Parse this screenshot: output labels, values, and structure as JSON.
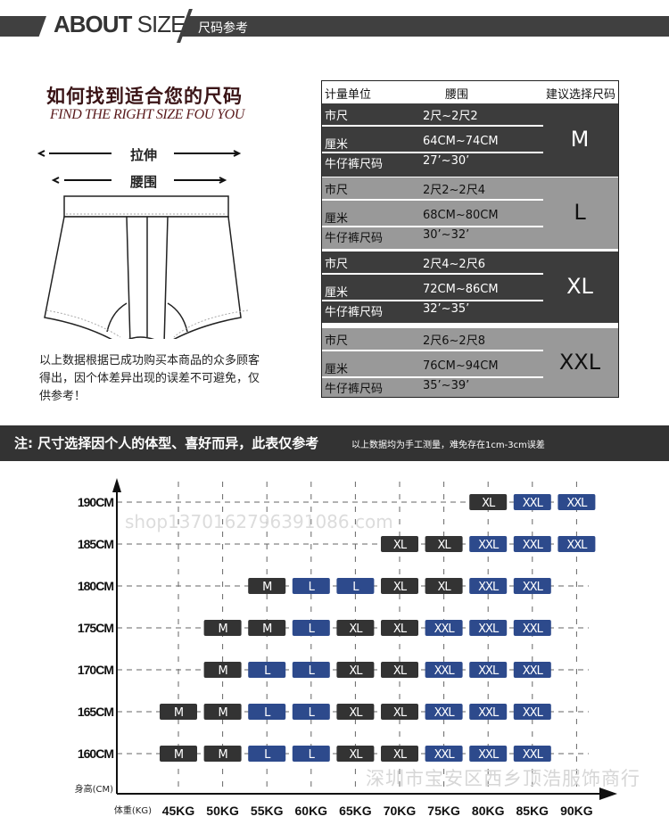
{
  "header": {
    "title_bold": "ABOUT",
    "title_light": "SIZE",
    "subtitle": "尺码参考"
  },
  "guide": {
    "title_cn": "如何找到适合您的尺码",
    "title_en": "FIND THE RIGHT SIZE FOU YOU",
    "stretch_label": "拉伸",
    "waist_label": "腰围",
    "description": "以上数据根据已成功购买本商品的众多顾客得出，因个体差异出现的误差不可避免，仅供参考！"
  },
  "size_table": {
    "headers": [
      "计量单位",
      "腰围",
      "建议选择尺码"
    ],
    "groups": [
      {
        "size": "M",
        "style": "dark",
        "rows": [
          {
            "unit": "市尺",
            "value": "2尺~2尺2"
          },
          {
            "unit": "厘米",
            "value": "64CM~74CM"
          },
          {
            "unit": "牛仔裤尺码",
            "value": "27’~30’"
          }
        ]
      },
      {
        "size": "L",
        "style": "light",
        "rows": [
          {
            "unit": "市尺",
            "value": "2尺2~2尺4"
          },
          {
            "unit": "厘米",
            "value": "68CM~80CM"
          },
          {
            "unit": "牛仔裤尺码",
            "value": "30’~32’"
          }
        ]
      },
      {
        "size": "XL",
        "style": "dark",
        "rows": [
          {
            "unit": "市尺",
            "value": "2尺4~2尺6"
          },
          {
            "unit": "厘米",
            "value": "72CM~86CM"
          },
          {
            "unit": "牛仔裤尺码",
            "value": "32’~35’"
          }
        ]
      },
      {
        "size": "XXL",
        "style": "light",
        "rows": [
          {
            "unit": "市尺",
            "value": "2尺6~2尺8"
          },
          {
            "unit": "厘米",
            "value": "76CM~94CM"
          },
          {
            "unit": "牛仔裤尺码",
            "value": "35’~39’"
          }
        ]
      }
    ]
  },
  "note": {
    "main": "注: 尺寸选择因个人的体型、喜好而异，此表仅参考",
    "sub": "以上数据均为手工测量，难免存在1cm-3cm误差"
  },
  "size_grid": {
    "type": "table",
    "ylabel": "身高(CM)",
    "xlabel": "体重(KG)",
    "heights": [
      "190CM",
      "185CM",
      "180CM",
      "175CM",
      "170CM",
      "165CM",
      "160CM"
    ],
    "weights": [
      "45KG",
      "50KG",
      "55KG",
      "60KG",
      "65KG",
      "70KG",
      "75KG",
      "80KG",
      "85KG",
      "90KG"
    ],
    "cells": [
      [
        null,
        null,
        null,
        null,
        null,
        null,
        null,
        "XL",
        "XXL",
        "XXL"
      ],
      [
        null,
        null,
        null,
        null,
        null,
        "XL",
        "XL",
        "XXL",
        "XXL",
        "XXL"
      ],
      [
        null,
        null,
        "M",
        "L",
        "L",
        "XL",
        "XL",
        "XXL",
        "XXL",
        null
      ],
      [
        null,
        "M",
        "M",
        "L",
        "XL",
        "XL",
        "XXL",
        "XXL",
        "XXL",
        null
      ],
      [
        null,
        "M",
        "L",
        "L",
        "XL",
        "XL",
        "XXL",
        "XXL",
        "XXL",
        null
      ],
      [
        "M",
        "M",
        "L",
        "L",
        "XL",
        "XL",
        "XXL",
        "XXL",
        "XXL",
        null
      ],
      [
        "M",
        "M",
        "L",
        "L",
        "XL",
        "XL",
        "XXL",
        "XXL",
        "XXL",
        null
      ]
    ],
    "colors": {
      "M": "#333333",
      "XL": "#333333",
      "L": "#2d4a8c",
      "XXL": "#2d4a8c"
    }
  },
  "watermark": {
    "line1": "深圳市宝安区西乡顶浩服饰商行",
    "line2": "shop1370162796391086.com"
  }
}
